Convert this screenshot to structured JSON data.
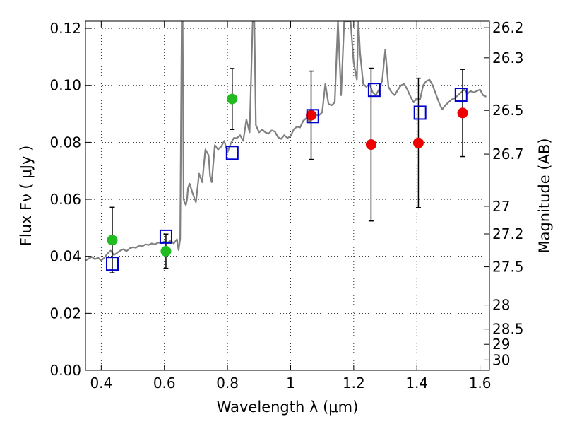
{
  "chart_data": {
    "type": "scatter",
    "xlabel": "Wavelength  λ (μm)",
    "ylabel": "Flux  Fν  ( μJy )",
    "y2label": "Magnitude (AB)",
    "xlim": [
      0.35,
      1.63
    ],
    "ylim": [
      0.0,
      0.1225
    ],
    "x_ticks": [
      0.4,
      0.6,
      0.8,
      1.0,
      1.2,
      1.4,
      1.6
    ],
    "x_tick_labels": [
      "0.4",
      "0.6",
      "0.8",
      "1",
      "1.2",
      "1.4",
      "1.6"
    ],
    "y_ticks": [
      0.0,
      0.02,
      0.04,
      0.06,
      0.08,
      0.1,
      0.12
    ],
    "y_tick_labels": [
      "0.00",
      "0.02",
      "0.04",
      "0.06",
      "0.08",
      "0.10",
      "0.12"
    ],
    "y2_ticks": [
      26.2,
      26.3,
      26.5,
      26.7,
      27,
      27.2,
      27.5,
      28,
      28.5,
      29,
      30
    ],
    "y2_tick_labels": [
      "26.2",
      "26.3",
      "26.5",
      "26.7",
      "27",
      "27.2",
      "27.5",
      "28",
      "28.5",
      "29",
      "30"
    ],
    "grid": true,
    "grid_style": "dotted",
    "colors": {
      "model": "#808080",
      "green_points": "#22bb22",
      "red_points": "#ee0000",
      "squares": "#0000cc",
      "errorbars": "#000000"
    },
    "series": [
      {
        "marker": "line",
        "x": [
          0.35,
          0.36,
          0.37,
          0.38,
          0.39,
          0.4,
          0.41,
          0.42,
          0.43,
          0.44,
          0.45,
          0.46,
          0.47,
          0.48,
          0.49,
          0.5,
          0.51,
          0.52,
          0.53,
          0.54,
          0.55,
          0.56,
          0.57,
          0.58,
          0.59,
          0.6,
          0.61,
          0.62,
          0.63,
          0.64,
          0.645,
          0.65,
          0.655,
          0.658,
          0.661,
          0.664,
          0.668,
          0.672,
          0.675,
          0.68,
          0.69,
          0.7,
          0.71,
          0.72,
          0.73,
          0.74,
          0.745,
          0.75,
          0.76,
          0.77,
          0.78,
          0.79,
          0.8,
          0.81,
          0.82,
          0.83,
          0.84,
          0.85,
          0.86,
          0.87,
          0.88,
          0.885,
          0.89,
          0.9,
          0.91,
          0.92,
          0.93,
          0.94,
          0.95,
          0.96,
          0.97,
          0.98,
          0.99,
          1.0,
          1.01,
          1.02,
          1.03,
          1.04,
          1.05,
          1.06,
          1.07,
          1.08,
          1.09,
          1.1,
          1.11,
          1.12,
          1.13,
          1.14,
          1.15,
          1.16,
          1.17,
          1.18,
          1.185,
          1.19,
          1.2,
          1.21,
          1.215,
          1.22,
          1.23,
          1.24,
          1.25,
          1.26,
          1.27,
          1.28,
          1.29,
          1.3,
          1.31,
          1.32,
          1.33,
          1.34,
          1.35,
          1.36,
          1.37,
          1.38,
          1.39,
          1.4,
          1.41,
          1.42,
          1.43,
          1.44,
          1.45,
          1.46,
          1.47,
          1.48,
          1.49,
          1.5,
          1.51,
          1.52,
          1.53,
          1.54,
          1.55,
          1.56,
          1.57,
          1.58,
          1.59,
          1.6,
          1.61,
          1.62
        ],
        "y": [
          0.0385,
          0.0392,
          0.0398,
          0.039,
          0.0395,
          0.0385,
          0.0395,
          0.041,
          0.042,
          0.0405,
          0.0412,
          0.042,
          0.0425,
          0.0418,
          0.0428,
          0.0432,
          0.043,
          0.0438,
          0.0435,
          0.0442,
          0.044,
          0.0445,
          0.0442,
          0.0448,
          0.0446,
          0.0452,
          0.0448,
          0.0455,
          0.0445,
          0.046,
          0.0422,
          0.046,
          0.1225,
          0.1225,
          0.06,
          0.059,
          0.058,
          0.06,
          0.064,
          0.0655,
          0.062,
          0.059,
          0.069,
          0.066,
          0.0775,
          0.0755,
          0.068,
          0.066,
          0.079,
          0.0775,
          0.0785,
          0.0805,
          0.0765,
          0.0795,
          0.0815,
          0.0815,
          0.0825,
          0.0805,
          0.088,
          0.0835,
          0.1225,
          0.1225,
          0.086,
          0.0835,
          0.0845,
          0.0835,
          0.083,
          0.0842,
          0.0838,
          0.0818,
          0.0812,
          0.0825,
          0.0815,
          0.0822,
          0.0845,
          0.0855,
          0.0852,
          0.0875,
          0.0885,
          0.087,
          0.0905,
          0.0895,
          0.0895,
          0.0905,
          0.1005,
          0.0935,
          0.093,
          0.094,
          0.1225,
          0.0965,
          0.1225,
          0.1225,
          0.1225,
          0.1225,
          0.108,
          0.102,
          0.1225,
          0.1115,
          0.1005,
          0.0995,
          0.1005,
          0.0975,
          0.0965,
          0.0985,
          0.1015,
          0.1125,
          0.0995,
          0.0975,
          0.0965,
          0.0985,
          0.1,
          0.1005,
          0.0985,
          0.096,
          0.094,
          0.0955,
          0.095,
          0.1,
          0.1015,
          0.102,
          0.1,
          0.097,
          0.094,
          0.0915,
          0.093,
          0.094,
          0.095,
          0.0955,
          0.0965,
          0.0975,
          0.0985,
          0.097,
          0.098,
          0.0975,
          0.098,
          0.0985,
          0.0965,
          0.096
        ]
      },
      {
        "marker": "circle",
        "color": "#22bb22",
        "x": [
          0.435,
          0.605,
          0.815
        ],
        "y": [
          0.0457,
          0.0418,
          0.0952
        ]
      },
      {
        "marker": "circle",
        "color": "#ee0000",
        "x": [
          1.065,
          1.255,
          1.405,
          1.545
        ],
        "y": [
          0.0895,
          0.0792,
          0.0798,
          0.0903
        ]
      },
      {
        "marker": "square",
        "color": "#0000cc",
        "x": [
          0.435,
          0.605,
          0.815,
          1.07,
          1.265,
          1.41,
          1.54
        ],
        "y": [
          0.0374,
          0.0469,
          0.0763,
          0.0892,
          0.0984,
          0.0904,
          0.0967
        ]
      },
      {
        "marker": "errorbar",
        "x": [
          0.435,
          0.605,
          0.815,
          1.065,
          1.255,
          1.405,
          1.545
        ],
        "y": [
          0.0457,
          0.0418,
          0.0952,
          0.0895,
          0.0792,
          0.0798,
          0.0903
        ],
        "yerr": [
          0.0115,
          0.006,
          0.0107,
          0.0155,
          0.0268,
          0.0227,
          0.0153
        ]
      }
    ]
  }
}
